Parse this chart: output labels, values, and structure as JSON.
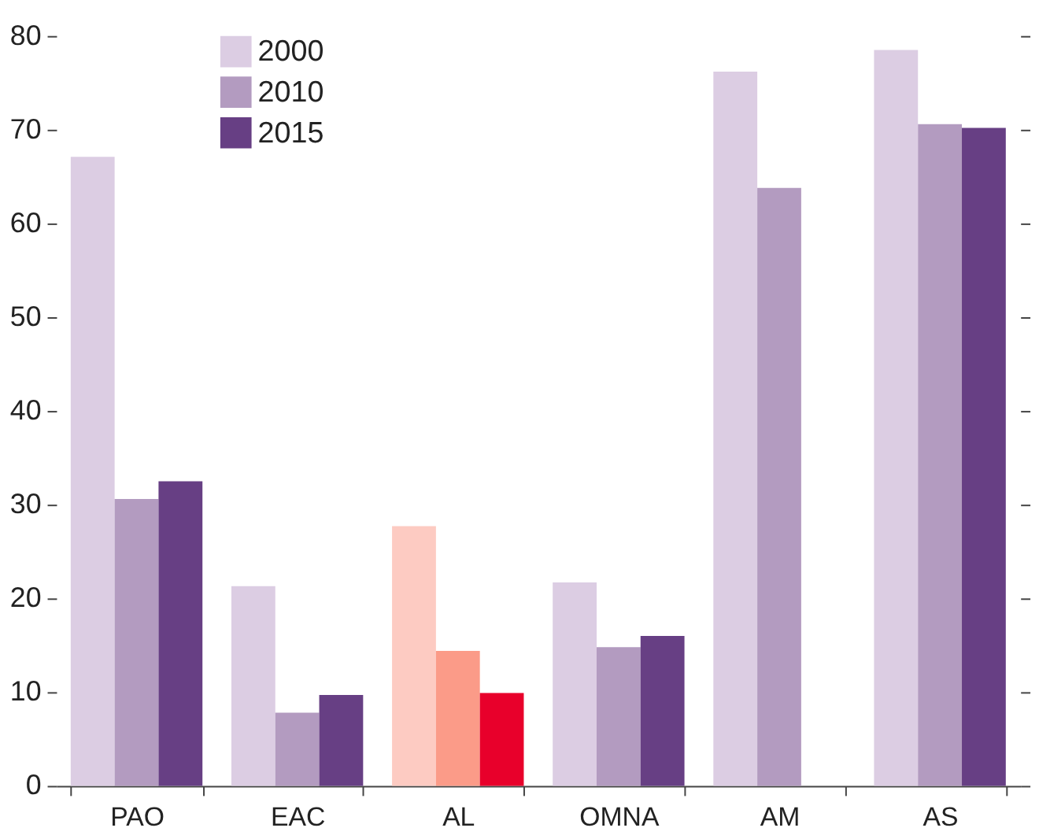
{
  "chart_data": {
    "type": "bar",
    "categories": [
      "PAO",
      "EAC",
      "AL",
      "OMNA",
      "AM",
      "AS"
    ],
    "series": [
      {
        "name": "2000",
        "color": "#dccde3",
        "values": [
          67.1,
          21.3,
          27.7,
          21.7,
          76.2,
          78.5
        ],
        "colors": [
          "#dccde3",
          "#dccde3",
          "#fdcbc2",
          "#dccde3",
          "#dccde3",
          "#dccde3"
        ]
      },
      {
        "name": "2010",
        "color": "#b39bc0",
        "values": [
          30.6,
          7.8,
          14.4,
          14.8,
          63.8,
          70.6
        ],
        "colors": [
          "#b39bc0",
          "#b39bc0",
          "#fb9b88",
          "#b39bc0",
          "#b39bc0",
          "#b39bc0"
        ]
      },
      {
        "name": "2015",
        "color": "#673f84",
        "values": [
          32.5,
          9.7,
          9.9,
          16.0,
          null,
          70.2
        ],
        "colors": [
          "#673f84",
          "#673f84",
          "#e8002b",
          "#673f84",
          "#673f84",
          "#673f84"
        ]
      }
    ],
    "ylim": [
      0,
      80
    ],
    "yticks": [
      0,
      10,
      20,
      30,
      40,
      50,
      60,
      70,
      80
    ],
    "grid": false,
    "legend": "top left"
  }
}
